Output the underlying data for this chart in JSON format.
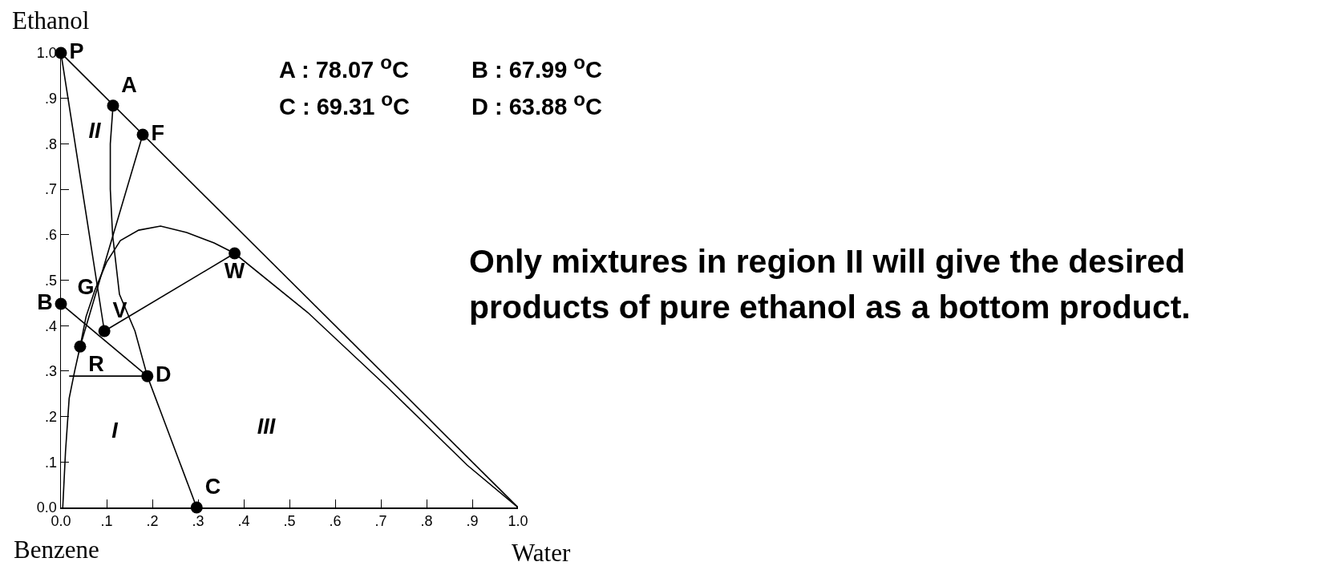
{
  "chart_data": {
    "type": "line",
    "xlabel": "Water",
    "ylabel": "Ethanol",
    "xlim": [
      0,
      1
    ],
    "ylim": [
      0,
      1
    ],
    "xticks": [
      {
        "value": 0,
        "label": "0.0"
      },
      {
        "value": 0.1,
        "label": ".1"
      },
      {
        "value": 0.2,
        "label": ".2"
      },
      {
        "value": 0.3,
        "label": ".3"
      },
      {
        "value": 0.4,
        "label": ".4"
      },
      {
        "value": 0.5,
        "label": ".5"
      },
      {
        "value": 0.6,
        "label": ".6"
      },
      {
        "value": 0.7,
        "label": ".7"
      },
      {
        "value": 0.8,
        "label": ".8"
      },
      {
        "value": 0.9,
        "label": ".9"
      },
      {
        "value": 1,
        "label": "1.0"
      }
    ],
    "yticks": [
      {
        "value": 0,
        "label": "0.0"
      },
      {
        "value": 0.1,
        "label": ".1"
      },
      {
        "value": 0.2,
        "label": ".2"
      },
      {
        "value": 0.3,
        "label": ".3"
      },
      {
        "value": 0.4,
        "label": ".4"
      },
      {
        "value": 0.5,
        "label": ".5"
      },
      {
        "value": 0.6,
        "label": ".6"
      },
      {
        "value": 0.7,
        "label": ".7"
      },
      {
        "value": 0.8,
        "label": ".8"
      },
      {
        "value": 0.9,
        "label": ".9"
      },
      {
        "value": 1,
        "label": "1.0"
      }
    ],
    "grid": false,
    "line_style": "solid",
    "series": [
      {
        "color": "#000000",
        "x": [
          0,
          1
        ],
        "values": [
          1,
          0
        ]
      },
      {
        "color": "#000000",
        "x": [
          0.004,
          0.01,
          0.018,
          0.03,
          0.042,
          0.055,
          0.075,
          0.1,
          0.13,
          0.17,
          0.218,
          0.275,
          0.335,
          0.38,
          0.54,
          0.714,
          0.889,
          1
        ],
        "values": [
          0,
          0.123,
          0.24,
          0.3,
          0.354,
          0.42,
          0.48,
          0.54,
          0.587,
          0.61,
          0.619,
          0.605,
          0.582,
          0.559,
          0.429,
          0.265,
          0.093,
          0
        ]
      },
      {
        "color": "#000000",
        "x": [
          0.114,
          0.108,
          0.108,
          0.113,
          0.128,
          0.162,
          0.189
        ],
        "values": [
          0.884,
          0.8,
          0.7,
          0.6,
          0.469,
          0.388,
          0.289
        ]
      },
      {
        "color": "#000000",
        "x": [
          0,
          0.095
        ],
        "values": [
          1,
          0.388
        ]
      },
      {
        "color": "#000000",
        "x": [
          0.095,
          0.38
        ],
        "values": [
          0.388,
          0.559
        ]
      },
      {
        "color": "#000000",
        "x": [
          0.042,
          0.179
        ],
        "values": [
          0.354,
          0.82
        ]
      },
      {
        "color": "#000000",
        "x": [
          0,
          0.189
        ],
        "values": [
          0.448,
          0.289
        ]
      },
      {
        "color": "#000000",
        "x": [
          0.189,
          0.297
        ],
        "values": [
          0.289,
          0
        ]
      },
      {
        "color": "#000000",
        "x": [
          0.018,
          0.2
        ],
        "values": [
          0.289,
          0.289
        ]
      },
      {
        "type": "scatter",
        "marker": "circle",
        "color": "#000000",
        "x": [
          0,
          0.114,
          0.179,
          0.38,
          0,
          0.095,
          0.042,
          0.189,
          0.297
        ],
        "values": [
          1,
          0.884,
          0.82,
          0.559,
          0.448,
          0.388,
          0.354,
          0.289,
          0
        ],
        "value_labels": [
          "P",
          "A",
          "F",
          "W",
          "B",
          "V",
          "R",
          "D",
          "C"
        ]
      }
    ],
    "annotations": [
      "G",
      "II",
      "I",
      "III",
      "A : 78.07 $^{o}$C",
      "B : 67.99 $^{o}$C",
      "C : 69.31 $^{o}$C",
      "D : 63.88 $^{o}$C",
      "Only mixtures in region II will give the desired products of pure ethanol as a bottom product.",
      "Benzene"
    ]
  }
}
